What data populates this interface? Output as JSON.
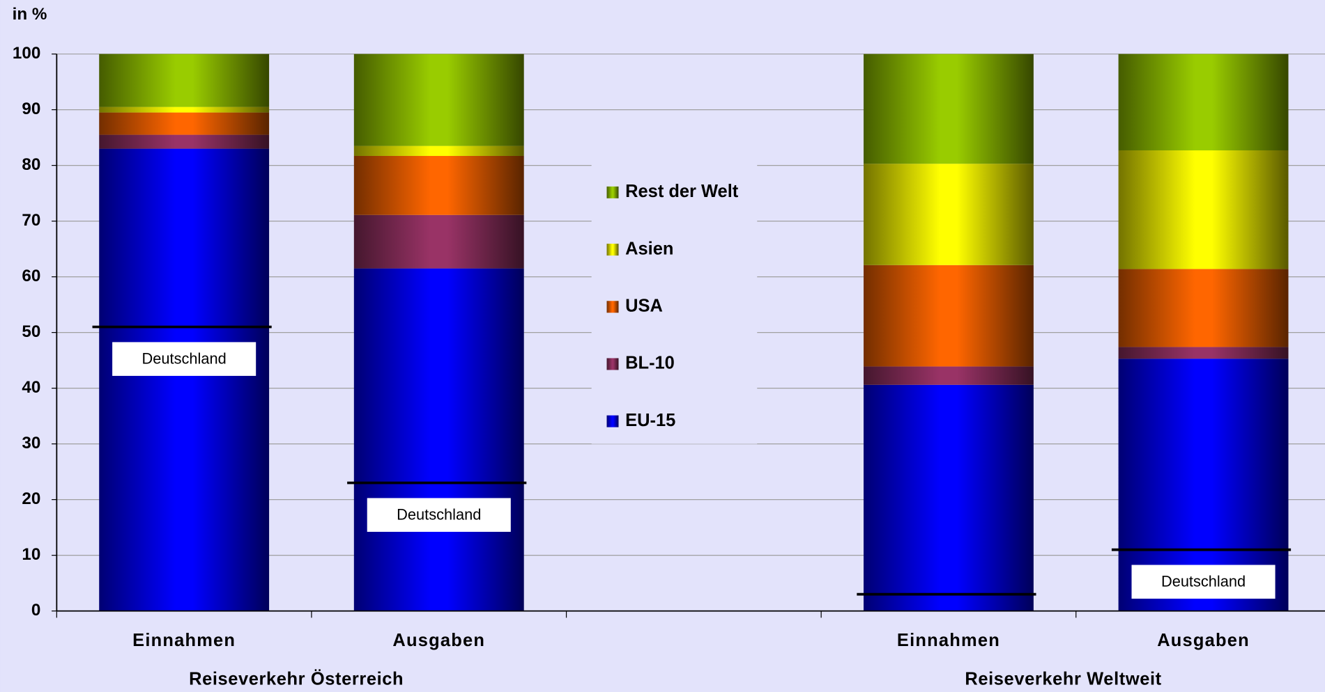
{
  "chart_data": {
    "type": "stacked_bar",
    "y_axis_label": "in %",
    "categories": [
      "Einnahmen",
      "Ausgaben",
      null,
      "Einnahmen",
      "Ausgaben"
    ],
    "groups": [
      "Reiseverkehr Österreich",
      "Reiseverkehr Weltweit"
    ],
    "series": [
      {
        "name": "EU-15",
        "color": "#0000ff",
        "values": [
          83,
          61.5,
          null,
          40.6,
          45.3
        ]
      },
      {
        "name": "BL-10",
        "color": "#993366",
        "values": [
          2.5,
          9.6,
          null,
          3.3,
          2.1
        ]
      },
      {
        "name": "USA",
        "color": "#ff6600",
        "values": [
          4,
          10.6,
          null,
          18.2,
          14
        ]
      },
      {
        "name": "Asien",
        "color": "#ffff00",
        "values": [
          1,
          1.8,
          null,
          18.2,
          21.3
        ]
      },
      {
        "name": "Rest der Welt",
        "color": "#99cc00",
        "values": [
          9.5,
          16.5,
          null,
          19.7,
          17.3
        ]
      }
    ],
    "reference_lines": [
      51,
      23,
      null,
      3,
      11
    ],
    "reference_labels": [
      "Deutschland",
      "Deutschland",
      null,
      null,
      "Deutschland"
    ],
    "ylim": [
      0,
      100
    ],
    "yticks": [
      0,
      10,
      20,
      30,
      40,
      50,
      60,
      70,
      80,
      90,
      100
    ],
    "grid": true,
    "legend": "center"
  }
}
